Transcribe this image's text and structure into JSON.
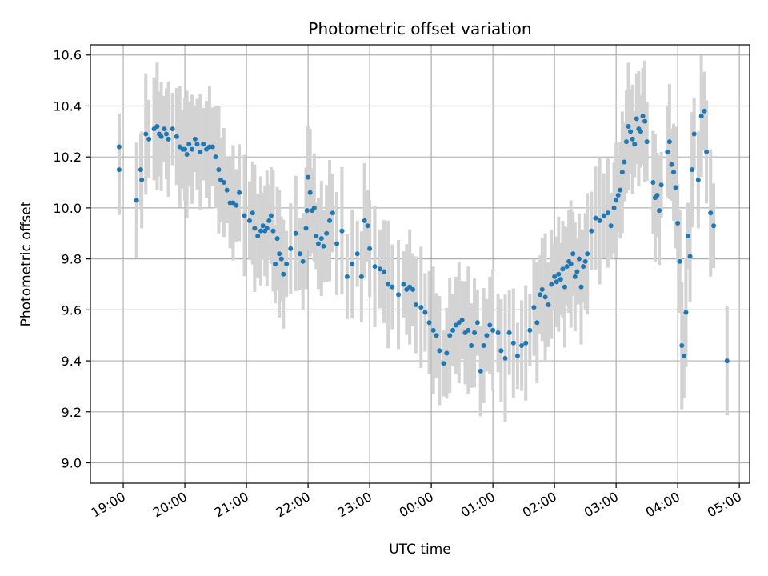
{
  "chart_data": {
    "type": "scatter",
    "title": "Photometric offset variation",
    "xlabel": "UTC time",
    "ylabel": "Photometric offset",
    "x_tick_labels": [
      "19:00",
      "20:00",
      "21:00",
      "22:00",
      "23:00",
      "00:00",
      "01:00",
      "02:00",
      "03:00",
      "04:00",
      "05:00"
    ],
    "y_tick_labels": [
      "9.0",
      "9.2",
      "9.4",
      "9.6",
      "9.8",
      "10.0",
      "10.2",
      "10.4",
      "10.6"
    ],
    "ylim": [
      8.92,
      10.64
    ],
    "xlim": [
      "18:28",
      "05:10"
    ],
    "grid": true,
    "point_color": "#1f77b4",
    "error_bar_color": "#d3d3d3",
    "series": [
      {
        "x": [
          "18:56",
          "18:56",
          "19:13",
          "19:17",
          "19:18",
          "19:22",
          "19:25",
          "19:30",
          "19:33",
          "19:35",
          "19:37",
          "19:40",
          "19:42",
          "19:44",
          "19:48",
          "19:52",
          "19:55",
          "19:58",
          "20:00",
          "20:02",
          "20:04",
          "20:07",
          "20:10",
          "20:12",
          "20:15",
          "20:18",
          "20:21",
          "20:24",
          "20:27",
          "20:30",
          "20:33",
          "20:35",
          "20:38",
          "20:41",
          "20:44",
          "20:47",
          "20:50",
          "20:53",
          "20:58",
          "21:03",
          "21:06",
          "21:08",
          "21:11",
          "21:14",
          "21:16",
          "21:18",
          "21:20",
          "21:22",
          "21:24",
          "21:26",
          "21:28",
          "21:30",
          "21:32",
          "21:34",
          "21:36",
          "21:39",
          "21:43",
          "21:48",
          "21:52",
          "21:55",
          "21:58",
          "21:59",
          "22:00",
          "22:02",
          "22:04",
          "22:06",
          "22:08",
          "22:10",
          "22:13",
          "22:15",
          "22:18",
          "22:21",
          "22:24",
          "22:28",
          "22:33",
          "22:38",
          "22:43",
          "22:48",
          "22:52",
          "22:55",
          "22:58",
          "23:00",
          "23:05",
          "23:10",
          "23:14",
          "23:18",
          "23:22",
          "23:28",
          "23:33",
          "23:36",
          "23:39",
          "23:42",
          "23:45",
          "23:50",
          "23:54",
          "23:58",
          "00:02",
          "00:05",
          "00:08",
          "00:12",
          "00:15",
          "00:18",
          "00:21",
          "00:24",
          "00:27",
          "00:30",
          "00:33",
          "00:36",
          "00:39",
          "00:42",
          "00:45",
          "00:48",
          "00:51",
          "00:54",
          "00:57",
          "01:00",
          "01:05",
          "01:08",
          "01:12",
          "01:16",
          "01:20",
          "01:24",
          "01:28",
          "01:32",
          "01:36",
          "01:40",
          "01:43",
          "01:46",
          "01:48",
          "01:51",
          "01:54",
          "01:57",
          "02:00",
          "02:02",
          "02:04",
          "02:06",
          "02:08",
          "02:10",
          "02:12",
          "02:14",
          "02:16",
          "02:18",
          "02:20",
          "02:22",
          "02:24",
          "02:26",
          "02:28",
          "02:30",
          "02:32",
          "02:36",
          "02:40",
          "02:44",
          "02:48",
          "02:52",
          "02:55",
          "02:58",
          "03:00",
          "03:02",
          "03:04",
          "03:06",
          "03:08",
          "03:10",
          "03:12",
          "03:14",
          "03:16",
          "03:18",
          "03:20",
          "03:22",
          "03:24",
          "03:26",
          "03:28",
          "03:30",
          "03:36",
          "03:38",
          "03:40",
          "03:42",
          "03:44",
          "03:50",
          "03:52",
          "03:54",
          "03:56",
          "03:58",
          "04:00",
          "04:02",
          "04:04",
          "04:06",
          "04:08",
          "04:10",
          "04:12",
          "04:14",
          "04:16",
          "04:20",
          "04:23",
          "04:26",
          "04:28",
          "04:32",
          "04:35",
          "04:48"
        ],
        "y": [
          10.24,
          10.15,
          10.03,
          10.15,
          10.11,
          10.29,
          10.27,
          10.31,
          10.32,
          10.29,
          10.28,
          10.31,
          10.29,
          10.27,
          10.31,
          10.28,
          10.24,
          10.23,
          10.23,
          10.21,
          10.25,
          10.23,
          10.27,
          10.25,
          10.22,
          10.25,
          10.23,
          10.24,
          10.24,
          10.2,
          10.15,
          10.11,
          10.1,
          10.07,
          10.02,
          10.02,
          10.01,
          10.06,
          9.97,
          9.95,
          9.98,
          9.92,
          9.89,
          9.91,
          9.93,
          9.91,
          9.92,
          9.95,
          9.97,
          9.91,
          9.78,
          9.88,
          9.82,
          9.8,
          9.74,
          9.78,
          9.84,
          9.9,
          9.82,
          9.79,
          9.92,
          9.99,
          10.12,
          10.06,
          9.99,
          10.0,
          9.89,
          9.86,
          9.88,
          9.85,
          9.9,
          9.95,
          9.98,
          9.86,
          9.91,
          9.73,
          9.78,
          9.82,
          9.73,
          9.95,
          9.93,
          9.84,
          9.77,
          9.76,
          9.75,
          9.7,
          9.69,
          9.66,
          9.7,
          9.68,
          9.69,
          9.68,
          9.62,
          9.61,
          9.59,
          9.55,
          9.52,
          9.5,
          9.44,
          9.39,
          9.43,
          9.5,
          9.52,
          9.54,
          9.55,
          9.56,
          9.51,
          9.52,
          9.46,
          9.51,
          9.55,
          9.36,
          9.46,
          9.5,
          9.54,
          9.52,
          9.51,
          9.44,
          9.41,
          9.51,
          9.47,
          9.42,
          9.46,
          9.47,
          9.52,
          9.61,
          9.55,
          9.66,
          9.68,
          9.65,
          9.62,
          9.7,
          9.73,
          9.71,
          9.74,
          9.72,
          9.76,
          9.69,
          9.77,
          9.79,
          9.78,
          9.82,
          9.73,
          9.75,
          9.8,
          9.69,
          9.77,
          9.79,
          9.82,
          9.91,
          9.96,
          9.95,
          9.97,
          9.98,
          9.93,
          10.0,
          10.03,
          10.05,
          10.07,
          10.14,
          10.18,
          10.26,
          10.32,
          10.3,
          10.27,
          10.25,
          10.35,
          10.31,
          10.3,
          10.36,
          10.34,
          10.26,
          10.1,
          10.04,
          10.05,
          9.99,
          10.09,
          10.22,
          10.26,
          10.17,
          10.14,
          10.08,
          9.94,
          9.79,
          9.46,
          9.42,
          9.59,
          9.89,
          9.81,
          10.15,
          10.29,
          10.11,
          10.36,
          10.38,
          10.22,
          9.98,
          9.93,
          9.4
        ]
      }
    ]
  }
}
